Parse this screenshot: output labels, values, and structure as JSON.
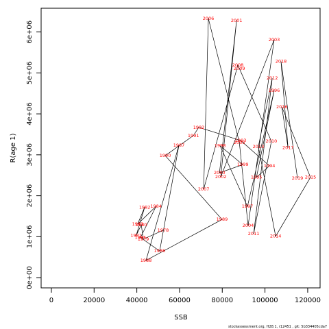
{
  "chart_data": {
    "type": "line",
    "x_label": "SSB",
    "y_label": "R(age 1)",
    "footnote": "stockassessment.org, H28.1, r12451 , git: 5b334405cda7",
    "labels": [
      "1978",
      "1979",
      "1980",
      "1981",
      "1982",
      "1983",
      "1984",
      "1985",
      "1986",
      "1987",
      "1988",
      "1989",
      "1990",
      "1991",
      "1992",
      "1993",
      "1994",
      "1995",
      "1996",
      "1997",
      "1998",
      "1999",
      "2000",
      "2001",
      "2002",
      "2003",
      "2004",
      "2005",
      "2006",
      "2007",
      "2008",
      "2009",
      "2010",
      "2011",
      "2012",
      "2013",
      "2014",
      "2015",
      "2016",
      "2017",
      "2018",
      "2019"
    ],
    "x": [
      52300,
      43000,
      42100,
      39700,
      43700,
      40400,
      49000,
      41700,
      50700,
      59700,
      44300,
      79900,
      53300,
      66500,
      69000,
      88600,
      102100,
      96000,
      104300,
      91800,
      79000,
      89600,
      78700,
      86700,
      79300,
      104300,
      92100,
      88000,
      73500,
      71300,
      87300,
      88000,
      103000,
      94700,
      103400,
      96900,
      105000,
      121300,
      107900,
      110800,
      107500,
      115200
    ],
    "values": [
      1156000,
      940000,
      1290000,
      1030000,
      1720000,
      1310000,
      1740000,
      980000,
      650000,
      3230000,
      420000,
      1420000,
      2980000,
      3470000,
      3670000,
      3350000,
      2730000,
      2450000,
      4570000,
      1740000,
      3220000,
      2760000,
      2560000,
      6280000,
      2460000,
      5810000,
      1270000,
      3300000,
      6330000,
      2160000,
      5190000,
      5110000,
      3330000,
      1070000,
      4870000,
      3200000,
      1010000,
      2450000,
      4170000,
      3170000,
      5280000,
      2430000
    ],
    "line_color": "#000000",
    "label_color": "#ff0000",
    "xlim": [
      -4800,
      125800
    ],
    "ylim": [
      -250000,
      6580000
    ],
    "xticks": [
      0,
      20000,
      40000,
      60000,
      80000,
      100000,
      120000
    ],
    "yticks": [
      {
        "value": 0,
        "label": "0e+00"
      },
      {
        "value": 1000000,
        "label": "1e+06"
      },
      {
        "value": 2000000,
        "label": "2e+06"
      },
      {
        "value": 3000000,
        "label": "3e+06"
      },
      {
        "value": 4000000,
        "label": "4e+06"
      },
      {
        "value": 5000000,
        "label": "5e+06"
      },
      {
        "value": 6000000,
        "label": "6e+06"
      }
    ]
  }
}
